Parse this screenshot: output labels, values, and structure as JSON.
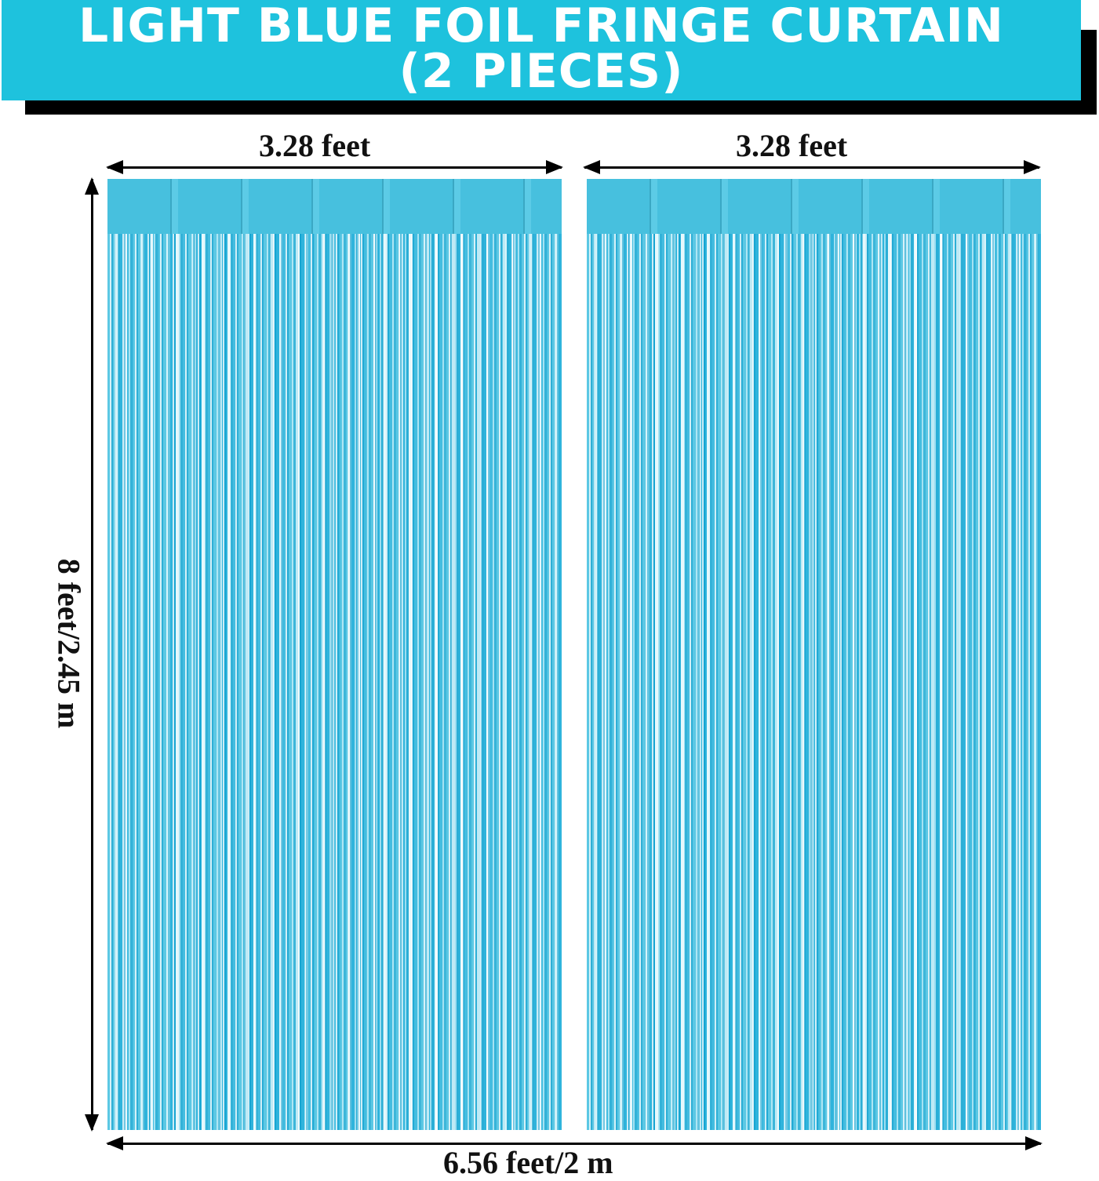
{
  "banner": {
    "line1": "LIGHT BLUE FOIL FRINGE CURTAIN",
    "line2": "(2 PIECES)",
    "color": "#1ec2dd"
  },
  "dimensions": {
    "left_width": "3.28 feet",
    "right_width": "3.28 feet",
    "height": "8 feet/2.45 m",
    "total_width": "6.56 feet/2 m"
  },
  "product": {
    "pieces": 2,
    "color": "light blue"
  }
}
